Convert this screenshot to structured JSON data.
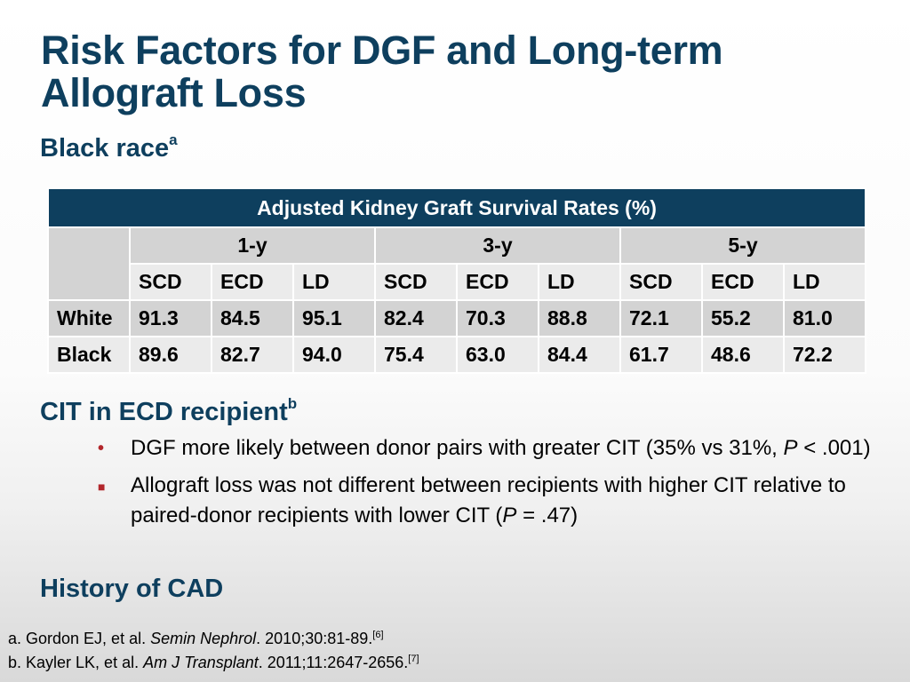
{
  "slide": {
    "title_line1": "Risk Factors for DGF and Long-term",
    "title_line2": "Allograft Loss"
  },
  "section1": {
    "heading": "Black race",
    "marker": "a"
  },
  "table": {
    "caption": "Adjusted Kidney Graft Survival Rates (%)",
    "years": [
      "1-y",
      "3-y",
      "5-y"
    ],
    "donor_types": [
      "SCD",
      "ECD",
      "LD",
      "SCD",
      "ECD",
      "LD",
      "SCD",
      "ECD",
      "LD"
    ],
    "rows": [
      {
        "label": "White",
        "values": [
          "91.3",
          "84.5",
          "95.1",
          "82.4",
          "70.3",
          "88.8",
          "72.1",
          "55.2",
          "81.0"
        ]
      },
      {
        "label": "Black",
        "values": [
          "89.6",
          "82.7",
          "94.0",
          "75.4",
          "63.0",
          "84.4",
          "61.7",
          "48.6",
          "72.2"
        ]
      }
    ]
  },
  "section2": {
    "heading": "CIT in ECD recipient",
    "marker": "b",
    "bullets": [
      {
        "marker": "•",
        "text_before": "DGF more likely between donor pairs with greater CIT (35% vs 31%, ",
        "italic": "P",
        "text_after": " < .001)"
      },
      {
        "marker": "■",
        "text_before": "Allograft loss was not different between recipients with higher CIT relative to paired-donor recipients with lower CIT (",
        "italic": "P",
        "text_after": " = .47)"
      }
    ]
  },
  "section3": {
    "heading": "History of CAD"
  },
  "references": [
    {
      "prefix": "a. Gordon EJ, et al. ",
      "journal": "Semin Nephrol",
      "details": ". 2010;30:81-89.",
      "cite": "[6]"
    },
    {
      "prefix": "b. Kayler LK, et al. ",
      "journal": "Am J Transplant",
      "details": ". 2011;11:2647-2656.",
      "cite": "[7]"
    }
  ],
  "colors": {
    "title": "#0e3f5e",
    "table_header": "#0e3f5e",
    "bullet": "#b2262b",
    "band": "#d3d3d3",
    "light_row": "#ebebeb"
  }
}
